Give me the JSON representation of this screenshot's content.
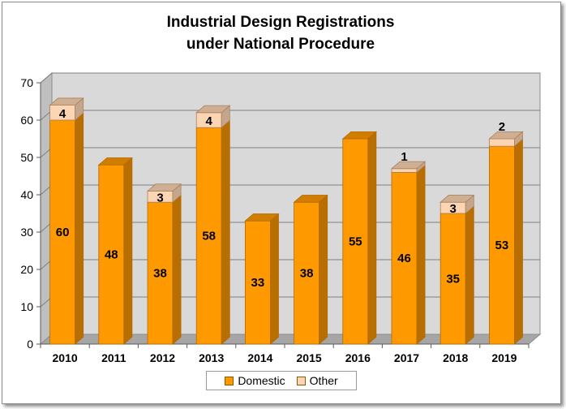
{
  "chart_data": {
    "type": "bar",
    "stacked": true,
    "title": [
      "Industrial Design Registrations",
      "under National Procedure"
    ],
    "categories": [
      "2010",
      "2011",
      "2012",
      "2013",
      "2014",
      "2015",
      "2016",
      "2017",
      "2018",
      "2019"
    ],
    "series": [
      {
        "name": "Domestic",
        "values": [
          60,
          48,
          38,
          58,
          33,
          38,
          55,
          46,
          35,
          53
        ],
        "color": "#ff9900"
      },
      {
        "name": "Other",
        "values": [
          4,
          0,
          3,
          4,
          0,
          0,
          0,
          1,
          3,
          2
        ],
        "color": "#fcd5b4"
      }
    ],
    "ylim": [
      0,
      70
    ],
    "yticks": [
      0,
      10,
      20,
      30,
      40,
      50,
      60,
      70
    ],
    "grid": true,
    "legend_position": "bottom",
    "plot_background": "#d9d9d9",
    "three_d": true
  }
}
